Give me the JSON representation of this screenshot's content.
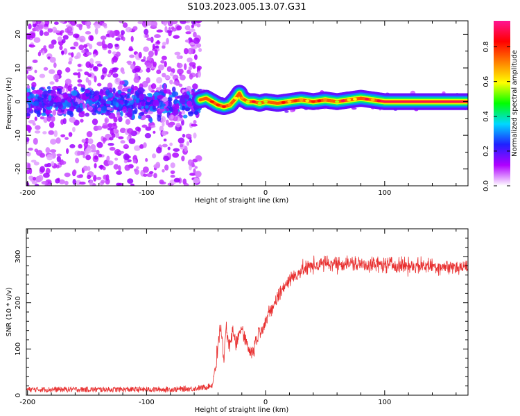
{
  "figure": {
    "title": "S103.2023.005.13.07.G31"
  },
  "chart_data": [
    {
      "type": "heatmap",
      "xlabel": "Height of straight line (km)",
      "ylabel": "Frequency (Hz)",
      "xlim": [
        -201,
        170
      ],
      "ylim": [
        -25,
        24
      ],
      "xticks": [
        -200,
        -100,
        0,
        100
      ],
      "yticks": [
        -20,
        -10,
        0,
        10,
        20
      ],
      "colorbar": {
        "label": "Normalized spectral amplitude",
        "range": [
          0,
          0.95
        ],
        "ticks": [
          0.0,
          0.2,
          0.4,
          0.6,
          0.8
        ],
        "tick_labels": [
          "0.0",
          "0.2",
          "0.4",
          "0.6",
          "0.8"
        ],
        "colors": [
          "#ffffff",
          "#b000ff",
          "#2020ff",
          "#00d8ff",
          "#00ff00",
          "#ffff00",
          "#ff7f00",
          "#ff0000",
          "#ff1493"
        ]
      },
      "regions": [
        {
          "x_range": [
            -201,
            -55
          ],
          "description": "scattered noise",
          "max_amplitude": 0.35
        },
        {
          "x_range": [
            -55,
            170
          ],
          "description": "narrow band near 0 Hz",
          "max_amplitude": 0.9
        }
      ],
      "ridge": {
        "x": [
          -55,
          -50,
          -45,
          -40,
          -35,
          -30,
          -25,
          -22,
          -20,
          -15,
          -10,
          -5,
          0,
          10,
          20,
          30,
          40,
          50,
          60,
          70,
          80,
          90,
          100,
          120,
          140,
          170
        ],
        "y": [
          0.5,
          1.0,
          0.0,
          -1.0,
          -1.5,
          -1.0,
          1.0,
          2.5,
          1.0,
          0.0,
          0.0,
          -0.5,
          0.0,
          -0.5,
          0.0,
          0.5,
          0.0,
          0.5,
          0.0,
          0.5,
          1.0,
          0.5,
          0.0,
          0.0,
          0.0,
          0.0
        ]
      }
    },
    {
      "type": "line",
      "xlabel": "Height of straight line (km)",
      "ylabel": "SNR (10 * v/v)",
      "xlim": [
        -201,
        170
      ],
      "ylim": [
        0,
        360
      ],
      "xticks": [
        -200,
        -100,
        0,
        100
      ],
      "yticks": [
        0,
        100,
        200,
        300
      ],
      "series": [
        {
          "color": "#e83030",
          "x": [
            -201,
            -180,
            -160,
            -140,
            -120,
            -100,
            -80,
            -60,
            -50,
            -45,
            -42,
            -40,
            -38,
            -35,
            -33,
            -30,
            -28,
            -25,
            -20,
            -18,
            -15,
            -12,
            -10,
            -8,
            -5,
            0,
            5,
            10,
            15,
            20,
            25,
            30,
            40,
            50,
            60,
            70,
            80,
            90,
            100,
            110,
            120,
            130,
            140,
            150,
            160,
            170
          ],
          "y": [
            10,
            10,
            10,
            10,
            10,
            10,
            10,
            12,
            15,
            20,
            60,
            110,
            150,
            80,
            140,
            100,
            140,
            110,
            150,
            130,
            105,
            90,
            100,
            120,
            140,
            160,
            185,
            210,
            235,
            250,
            260,
            270,
            280,
            285,
            285,
            285,
            283,
            283,
            282,
            282,
            280,
            280,
            280,
            278,
            277,
            277
          ],
          "noise_amplitude": 12
        }
      ]
    }
  ]
}
